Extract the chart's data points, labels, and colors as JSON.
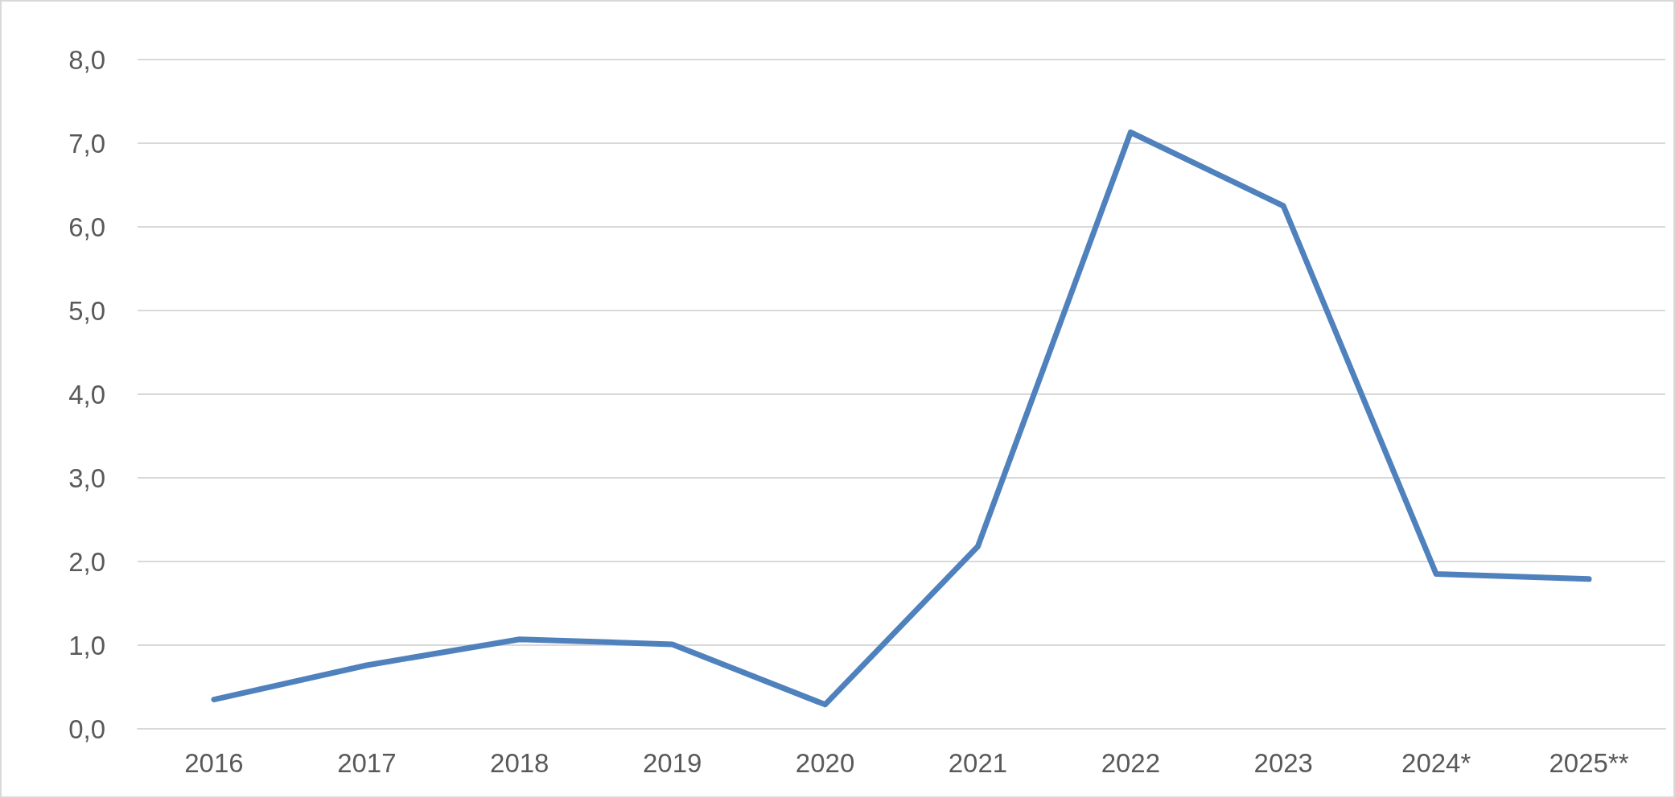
{
  "chart_data": {
    "type": "line",
    "categories": [
      "2016",
      "2017",
      "2018",
      "2019",
      "2020",
      "2021",
      "2022",
      "2023",
      "2024*",
      "2025**"
    ],
    "series": [
      {
        "color": "#4f81bd",
        "values": [
          0.35,
          0.76,
          1.07,
          1.01,
          0.29,
          2.18,
          7.13,
          6.25,
          1.85,
          1.79
        ]
      }
    ],
    "ylim": [
      0,
      8
    ],
    "yticks": [
      {
        "value": 0,
        "label": "0,0"
      },
      {
        "value": 1,
        "label": "1,0"
      },
      {
        "value": 2,
        "label": "2,0"
      },
      {
        "value": 3,
        "label": "3,0"
      },
      {
        "value": 4,
        "label": "4,0"
      },
      {
        "value": 5,
        "label": "5,0"
      },
      {
        "value": 6,
        "label": "6,0"
      },
      {
        "value": 7,
        "label": "7,0"
      },
      {
        "value": 8,
        "label": "8,0"
      }
    ],
    "grid": "y",
    "marker": "none",
    "line_style": "solid"
  }
}
